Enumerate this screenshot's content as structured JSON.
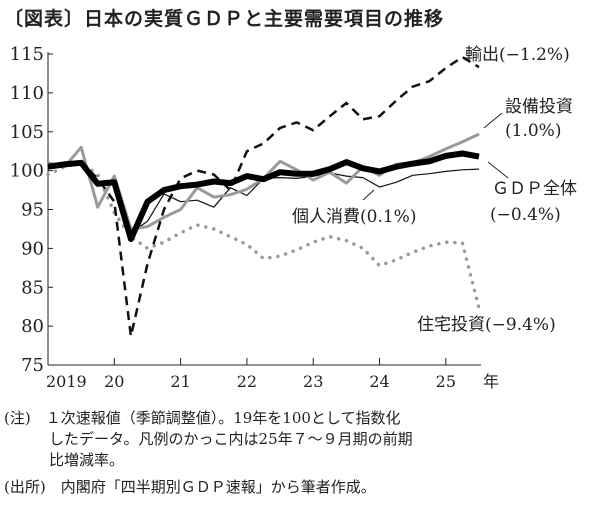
{
  "title": "〔図表〕日本の実質ＧＤＰと主要需要項目の推移",
  "chart_data": {
    "type": "line",
    "title": "〔図表〕日本の実質ＧＤＰと主要需要項目の推移",
    "xlabel": "年",
    "ylabel": "",
    "ylim": [
      75,
      115
    ],
    "yticks": [
      "75",
      "80",
      "85",
      "90",
      "95",
      "100",
      "105",
      "110",
      "115"
    ],
    "xticks": [
      "2019",
      "20",
      "21",
      "22",
      "23",
      "24",
      "25"
    ],
    "x_unit": "年",
    "x": [
      "2019Q1",
      "2019Q2",
      "2019Q3",
      "2019Q4",
      "2020Q1",
      "2020Q2",
      "2020Q3",
      "2020Q4",
      "2021Q1",
      "2021Q2",
      "2021Q3",
      "2021Q4",
      "2022Q1",
      "2022Q2",
      "2022Q3",
      "2022Q4",
      "2023Q1",
      "2023Q2",
      "2023Q3",
      "2023Q4",
      "2024Q1",
      "2024Q2",
      "2024Q3",
      "2024Q4",
      "2025Q1",
      "2025Q2",
      "2025Q3"
    ],
    "grid": false,
    "series": [
      {
        "name": "輸出",
        "label": "輸出(−1.2%)",
        "style": "dashed",
        "color": "#111111",
        "values": [
          100.5,
          100.8,
          101,
          99,
          96,
          78.7,
          88,
          95,
          99,
          100,
          99.5,
          97.5,
          102.5,
          103.5,
          105.5,
          106.2,
          105.2,
          107,
          108.7,
          106.6,
          107,
          109,
          110.8,
          111.5,
          113.2,
          114.6,
          113.3
        ]
      },
      {
        "name": "設備投資",
        "label": "設備投資(1.0%)",
        "style": "solid-gray",
        "color": "#9a9a9a",
        "values": [
          101,
          100.5,
          103,
          95.3,
          99.3,
          92.5,
          92.8,
          94,
          95,
          97.8,
          96.6,
          96.9,
          97.6,
          99,
          101.2,
          100.1,
          98.8,
          99.8,
          98.4,
          100.5,
          99.4,
          100.8,
          101,
          101.8,
          102.8,
          103.7,
          104.7
        ]
      },
      {
        "name": "GDP全体",
        "label": "ＧＤＰ全体(−0.4%)",
        "style": "thick",
        "color": "#000000",
        "values": [
          100.5,
          100.8,
          101,
          98.3,
          98.5,
          91.2,
          96,
          97.5,
          98,
          98.2,
          98.6,
          98.4,
          99.3,
          98.9,
          99.8,
          99.6,
          99.6,
          100.2,
          101.1,
          100.3,
          99.9,
          100.5,
          100.9,
          101.2,
          101.9,
          102.2,
          101.8
        ]
      },
      {
        "name": "個人消費",
        "label": "個人消費(0.1%)",
        "style": "thin",
        "color": "#111111",
        "values": [
          100.5,
          100.7,
          101,
          98,
          98.3,
          92,
          93.5,
          97,
          96,
          96.2,
          95.3,
          97.8,
          96.8,
          99,
          99.1,
          99,
          99.3,
          99.7,
          99.3,
          99.1,
          97.9,
          98.5,
          99.4,
          99.6,
          99.9,
          100.1,
          100.2
        ]
      },
      {
        "name": "住宅投資",
        "label": "住宅投資(−9.4%)",
        "style": "dotted",
        "color": "#9a9a9a",
        "values": [
          99.5,
          100.5,
          101,
          99.5,
          94.6,
          91.5,
          90,
          90.8,
          92,
          93,
          92.5,
          91.5,
          90.5,
          88.7,
          89,
          89.8,
          90.8,
          91.5,
          91,
          90,
          87.8,
          88.5,
          89.5,
          90.3,
          90.8,
          90.7,
          82.3
        ]
      }
    ],
    "labels": {
      "exports": "輸出(−1.2%)",
      "capex1": "設備投資",
      "capex2": "(1.0%)",
      "gdp1": "ＧＤＰ全体",
      "gdp2": "(−0.4%)",
      "consumption": "個人消費(0.1%)",
      "housing": "住宅投資(−9.4%)"
    }
  },
  "notes": {
    "line1": "(注)　１次速報値（季節調整値）。19年を100として指数化",
    "line2": "　　　したデータ。凡例のかっこ内は25年７～９月期の前期",
    "line3": "　　　比増減率。",
    "line4": "(出所)　内閣府「四半期別ＧＤＰ速報」から筆者作成。"
  }
}
